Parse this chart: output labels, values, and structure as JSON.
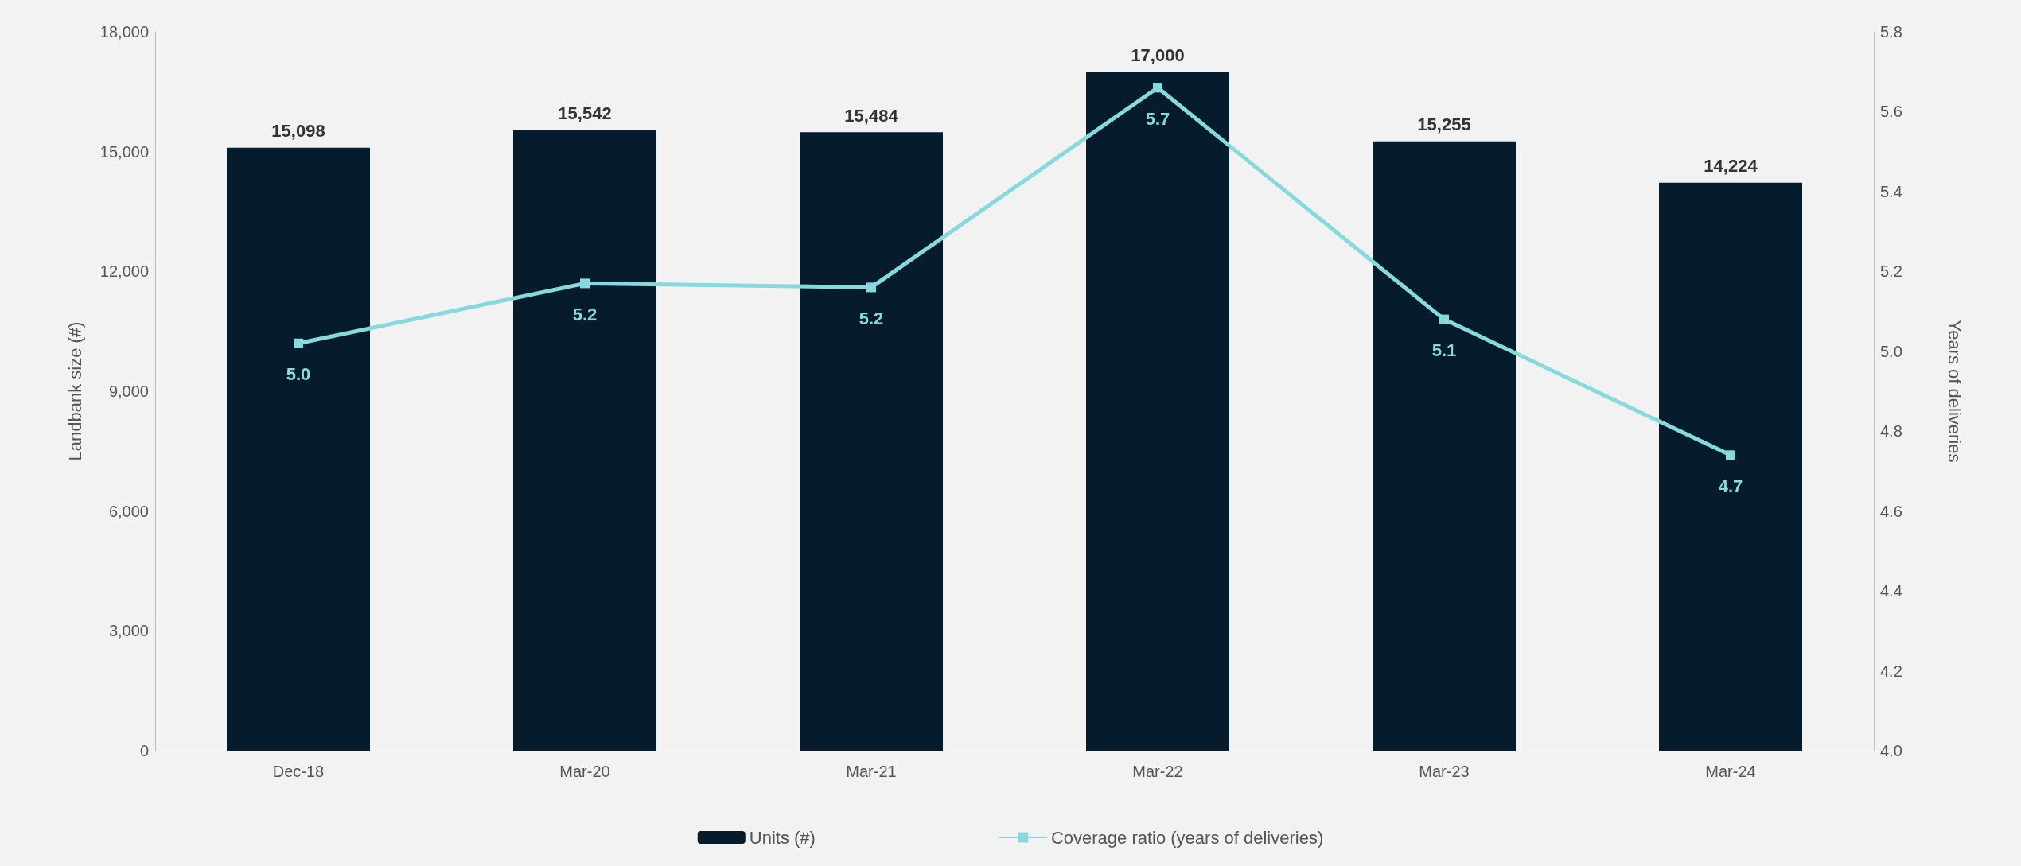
{
  "chart_data": {
    "type": "bar",
    "ylabel": "Landbank size (#)",
    "y2label": "Years of deliveries",
    "categories": [
      "Dec-18",
      "Mar-20",
      "Mar-21",
      "Mar-22",
      "Mar-23",
      "Mar-24"
    ],
    "series": [
      {
        "name": "Units (#)",
        "color": "#061c2c",
        "values": [
          15098,
          15542,
          15484,
          17000,
          15255,
          14224
        ],
        "value_labels": [
          "15,098",
          "15,542",
          "15,484",
          "17,000",
          "15,255",
          "14,224"
        ]
      },
      {
        "name": "Coverage ratio (years of deliveries)",
        "type": "line",
        "axis": "y2",
        "color": "#86dadd",
        "marker": "square",
        "values": [
          5.02,
          5.17,
          5.16,
          5.66,
          5.08,
          4.74
        ],
        "value_labels": [
          "5.0",
          "5.2",
          "5.2",
          "5.7",
          "5.1",
          "4.7"
        ]
      }
    ],
    "ylim": [
      0,
      18000
    ],
    "yticks": [
      0,
      {
        "value": 3000,
        "label": "3,000"
      },
      {
        "value": 6000,
        "label": "6,000"
      },
      {
        "value": 9000,
        "label": "9,000"
      },
      {
        "value": 12000,
        "label": "12,000"
      },
      {
        "value": 15000,
        "label": "15,000"
      },
      {
        "value": 18000,
        "label": "18,000"
      }
    ],
    "y2lim": [
      4.0,
      5.8
    ],
    "y2ticks": [
      {
        "value": 4.0,
        "label": "4.0"
      },
      {
        "value": 4.2,
        "label": "4.2"
      },
      {
        "value": 4.4,
        "label": "4.4"
      },
      {
        "value": 4.6,
        "label": "4.6"
      },
      {
        "value": 4.8,
        "label": "4.8"
      },
      {
        "value": 5.0,
        "label": "5.0"
      },
      {
        "value": 5.2,
        "label": "5.2"
      },
      {
        "value": 5.4,
        "label": "5.4"
      },
      {
        "value": 5.6,
        "label": "5.6"
      },
      {
        "value": 5.8,
        "label": "5.8"
      }
    ],
    "grid": false,
    "legend": "bottom"
  }
}
